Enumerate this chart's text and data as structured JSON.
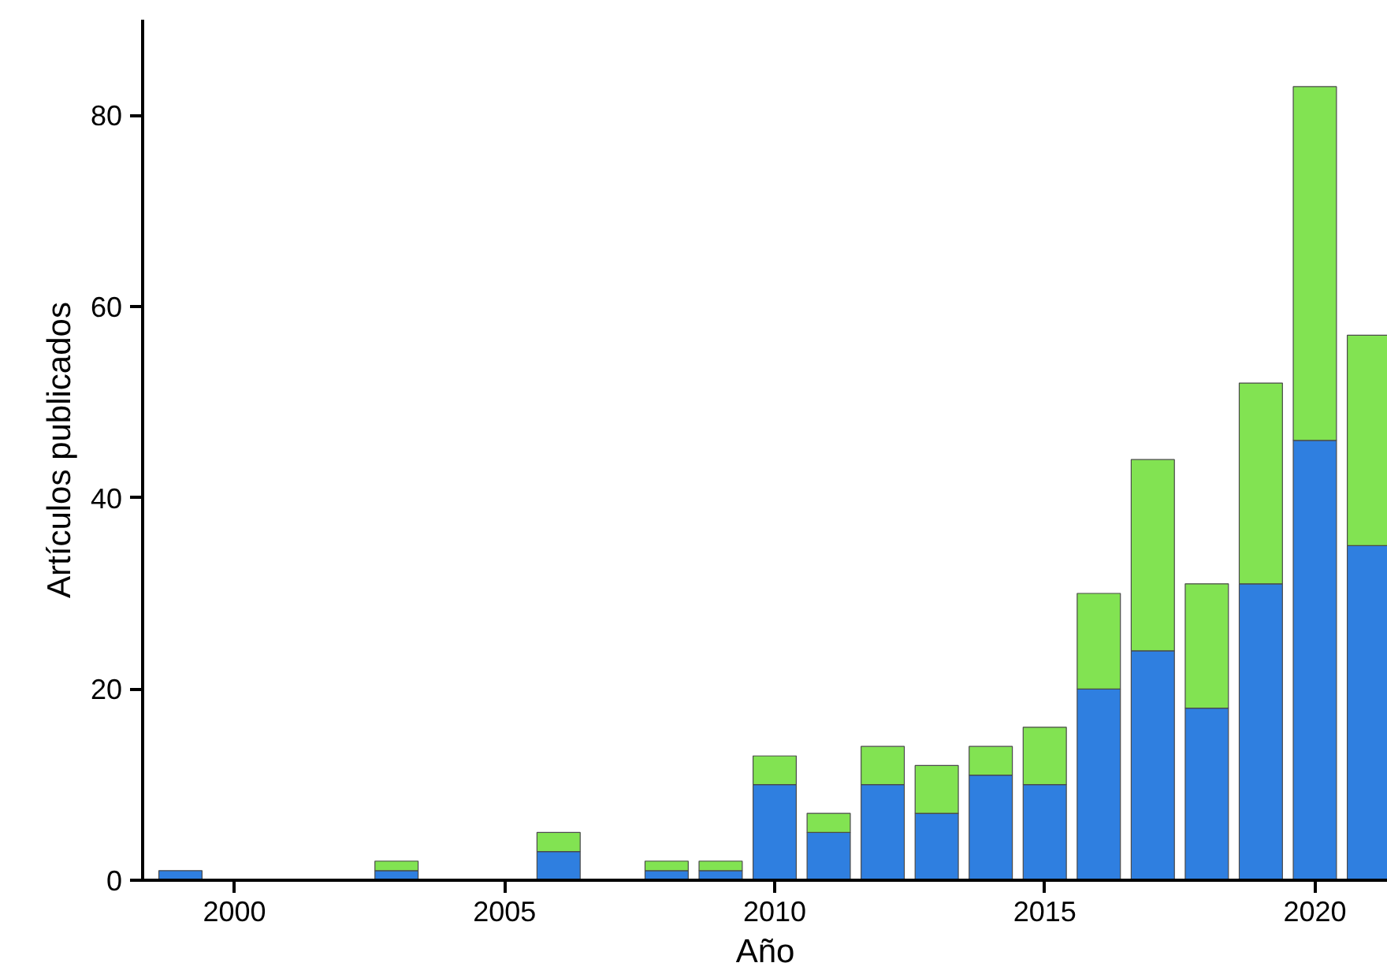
{
  "chart_data": {
    "type": "bar",
    "stacked": true,
    "xlabel": "Año",
    "ylabel": "Artículos publicados",
    "x": [
      1999,
      2003,
      2006,
      2008,
      2009,
      2010,
      2011,
      2012,
      2013,
      2014,
      2015,
      2016,
      2017,
      2018,
      2019,
      2020,
      2021
    ],
    "series": [
      {
        "color": "#2f7fe0",
        "values": [
          1,
          1,
          3,
          1,
          1,
          10,
          5,
          10,
          7,
          11,
          10,
          20,
          24,
          18,
          31,
          46,
          35
        ]
      },
      {
        "color": "#82e352",
        "values": [
          null,
          1,
          2,
          1,
          1,
          3,
          2,
          4,
          5,
          3,
          6,
          10,
          20,
          13,
          21,
          37,
          22
        ]
      }
    ],
    "xlim": [
      1998.3,
      2021.35
    ],
    "xticks": [
      2000,
      2005,
      2010,
      2015,
      2020
    ],
    "ylim": [
      0,
      90
    ],
    "yticks": [
      0,
      20,
      40,
      60,
      80
    ],
    "grid": false
  }
}
